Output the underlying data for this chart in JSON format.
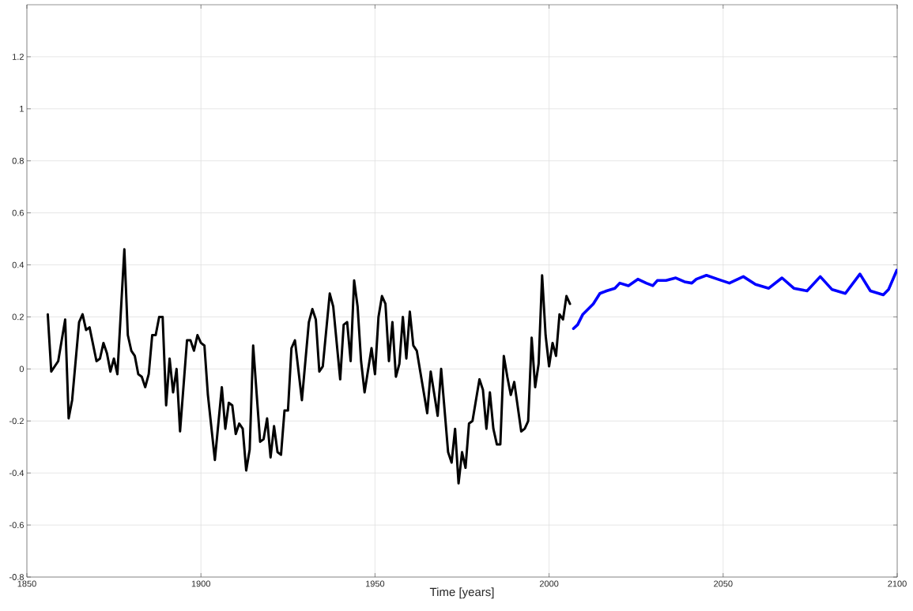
{
  "chart_data": {
    "type": "line",
    "xlabel": "Time [years]",
    "xlim": [
      1850,
      2100
    ],
    "xticks": [
      1850,
      1900,
      1950,
      2000,
      2050,
      2100
    ],
    "ylim": [
      -0.8,
      1.4
    ],
    "yticks": [
      -0.8,
      -0.6,
      -0.4,
      -0.2,
      0,
      0.2,
      0.4,
      0.6,
      0.8,
      1,
      1.2
    ],
    "grid": true,
    "series": [
      {
        "color": "#000000",
        "x": [
          1856,
          1857,
          1859,
          1861,
          1862,
          1863,
          1865,
          1866,
          1867,
          1868,
          1870,
          1871,
          1872,
          1873,
          1874,
          1875,
          1876,
          1878,
          1879,
          1880,
          1881,
          1882,
          1883,
          1884,
          1885,
          1886,
          1887,
          1888,
          1889,
          1890,
          1891,
          1892,
          1893,
          1894,
          1896,
          1897,
          1898,
          1899,
          1900,
          1901,
          1902,
          1904,
          1906,
          1907,
          1908,
          1909,
          1910,
          1911,
          1912,
          1913,
          1914,
          1915,
          1917,
          1918,
          1919,
          1920,
          1921,
          1922,
          1923,
          1924,
          1925,
          1926,
          1927,
          1929,
          1931,
          1932,
          1933,
          1934,
          1935,
          1937,
          1938,
          1940,
          1941,
          1942,
          1943,
          1944,
          1945,
          1946,
          1947,
          1949,
          1950,
          1951,
          1952,
          1953,
          1954,
          1955,
          1956,
          1957,
          1958,
          1959,
          1960,
          1961,
          1962,
          1963,
          1965,
          1966,
          1968,
          1969,
          1971,
          1972,
          1973,
          1974,
          1975,
          1976,
          1977,
          1978,
          1980,
          1981,
          1982,
          1983,
          1984,
          1985,
          1986,
          1987,
          1988,
          1989,
          1990,
          1992,
          1993,
          1994,
          1995,
          1996,
          1997,
          1998,
          1999,
          2000,
          2001,
          2002,
          2003,
          2004,
          2005,
          2006
        ],
        "values": [
          0.21,
          -0.01,
          0.03,
          0.19,
          -0.19,
          -0.12,
          0.18,
          0.21,
          0.15,
          0.16,
          0.03,
          0.04,
          0.1,
          0.06,
          -0.01,
          0.04,
          -0.02,
          0.46,
          0.13,
          0.07,
          0.05,
          -0.02,
          -0.03,
          -0.07,
          -0.02,
          0.13,
          0.13,
          0.2,
          0.2,
          -0.14,
          0.04,
          -0.09,
          0.0,
          -0.24,
          0.11,
          0.11,
          0.07,
          0.13,
          0.1,
          0.09,
          -0.1,
          -0.35,
          -0.07,
          -0.23,
          -0.13,
          -0.14,
          -0.25,
          -0.21,
          -0.23,
          -0.39,
          -0.31,
          0.09,
          -0.28,
          -0.27,
          -0.19,
          -0.34,
          -0.22,
          -0.32,
          -0.33,
          -0.16,
          -0.16,
          0.08,
          0.11,
          -0.12,
          0.18,
          0.23,
          0.19,
          -0.01,
          0.01,
          0.29,
          0.24,
          -0.04,
          0.17,
          0.18,
          0.03,
          0.34,
          0.24,
          0.03,
          -0.09,
          0.08,
          -0.02,
          0.2,
          0.28,
          0.25,
          0.03,
          0.18,
          -0.03,
          0.02,
          0.2,
          0.04,
          0.22,
          0.09,
          0.07,
          -0.01,
          -0.17,
          -0.01,
          -0.18,
          0.0,
          -0.32,
          -0.36,
          -0.23,
          -0.44,
          -0.32,
          -0.38,
          -0.21,
          -0.2,
          -0.04,
          -0.08,
          -0.23,
          -0.09,
          -0.23,
          -0.29,
          -0.29,
          0.05,
          -0.03,
          -0.1,
          -0.05,
          -0.24,
          -0.23,
          -0.2,
          0.12,
          -0.07,
          0.02,
          0.36,
          0.13,
          0.01,
          0.1,
          0.05,
          0.21,
          0.19,
          0.28,
          0.25
        ]
      },
      {
        "color": "#0000ff",
        "x": [
          2007,
          2008.2,
          2009.7,
          2011.2,
          2012.7,
          2014.6,
          2016.5,
          2018.9,
          2020.3,
          2022.8,
          2025.5,
          2027.9,
          2029.8,
          2031.1,
          2033.6,
          2036.4,
          2038.9,
          2041,
          2042.3,
          2045.2,
          2048.4,
          2051.8,
          2055.8,
          2059.3,
          2063.1,
          2066.9,
          2070.3,
          2074.1,
          2077.9,
          2081.3,
          2085.1,
          2089.3,
          2092.3,
          2096,
          2097.5,
          2099.9
        ],
        "values": [
          0.155,
          0.17,
          0.21,
          0.23,
          0.25,
          0.29,
          0.3,
          0.31,
          0.33,
          0.32,
          0.345,
          0.33,
          0.32,
          0.34,
          0.34,
          0.35,
          0.335,
          0.33,
          0.345,
          0.36,
          0.345,
          0.33,
          0.355,
          0.325,
          0.31,
          0.35,
          0.31,
          0.3,
          0.355,
          0.305,
          0.29,
          0.365,
          0.3,
          0.285,
          0.305,
          0.38
        ]
      }
    ]
  }
}
